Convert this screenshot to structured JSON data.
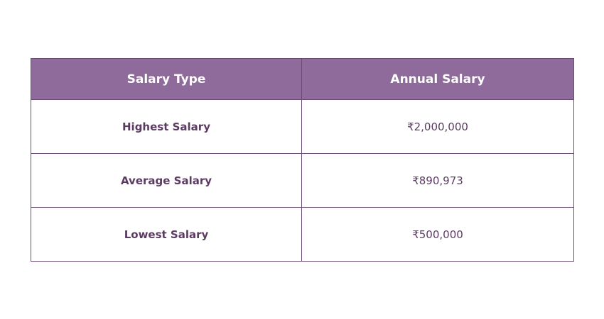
{
  "table": {
    "headers": {
      "salary_type": "Salary Type",
      "annual_salary": "Annual Salary"
    },
    "rows": [
      {
        "type": "Highest Salary",
        "value": "₹2,000,000"
      },
      {
        "type": "Average Salary",
        "value": "₹890,973"
      },
      {
        "type": "Lowest Salary",
        "value": "₹500,000"
      }
    ]
  },
  "colors": {
    "header_background": "#8f6b9b",
    "header_text": "#ffffff",
    "cell_text": "#5c3b63",
    "border": "#6b4b73"
  }
}
